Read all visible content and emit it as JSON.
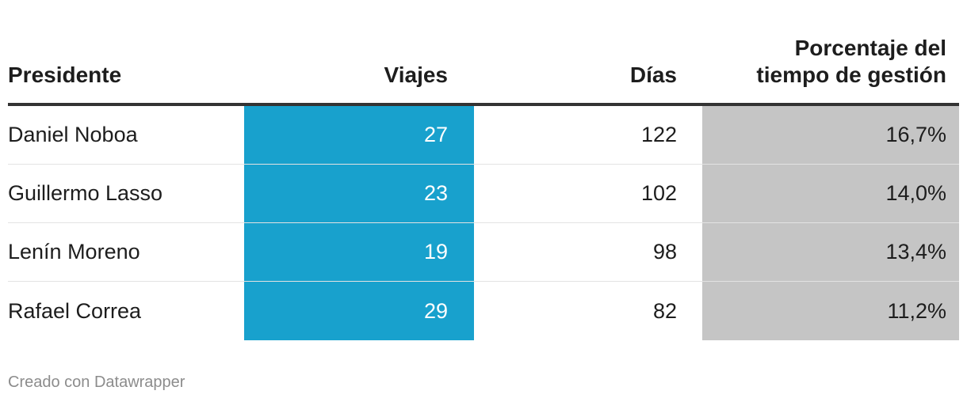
{
  "chart_data": {
    "type": "table",
    "columns": [
      "Presidente",
      "Viajes",
      "Días",
      "Porcentaje del tiempo de gestión"
    ],
    "header": {
      "president": "Presidente",
      "viajes": "Viajes",
      "dias": "Días",
      "pct_line1": "Porcentaje del",
      "pct_line2": "tiempo de gestión"
    },
    "rows": [
      {
        "president": "Daniel Noboa",
        "viajes": "27",
        "dias": "122",
        "pct": "16,7%"
      },
      {
        "president": "Guillermo Lasso",
        "viajes": "23",
        "dias": "102",
        "pct": "14,0%"
      },
      {
        "president": "Lenín Moreno",
        "viajes": "19",
        "dias": "98",
        "pct": "13,4%"
      },
      {
        "president": "Rafael Correa",
        "viajes": "29",
        "dias": "82",
        "pct": "11,2%"
      }
    ],
    "colors": {
      "viajes_column": "#18a1cd",
      "pct_column": "#c5c5c5",
      "header_rule": "#333333"
    }
  },
  "footer": {
    "credit": "Creado con Datawrapper"
  }
}
